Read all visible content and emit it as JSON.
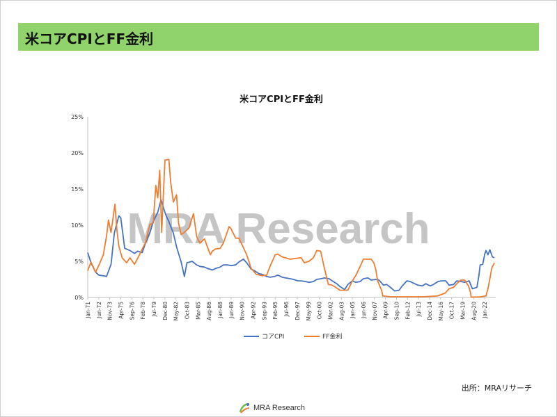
{
  "slide": {
    "header_title": "米コアCPIとFF金利",
    "source_note": "出所：MRAリサーチ",
    "watermark": "MRA Research",
    "footer_logo_text": "MRA Research"
  },
  "colors": {
    "header_bg": "#8fd36a",
    "core_cpi": "#4472c4",
    "ff_rate": "#ed7d31",
    "axis": "#bfbfbf",
    "watermark": "#7f7f7f"
  },
  "chart_data": {
    "type": "line",
    "title": "米コアCPIとFF金利",
    "xlabel": "",
    "ylabel": "",
    "ylim": [
      0,
      25
    ],
    "y_ticks": [
      "0%",
      "5%",
      "10%",
      "15%",
      "20%",
      "25%"
    ],
    "x_tick_labels": [
      "Jan-71",
      "Jun-72",
      "Nov-73",
      "Apr-75",
      "Sep-76",
      "Feb-78",
      "Jul-79",
      "Dec-80",
      "May-82",
      "Oct-83",
      "Mar-85",
      "Aug-86",
      "Jan-88",
      "Jun-89",
      "Nov-90",
      "Apr-92",
      "Sep-93",
      "Feb-95",
      "Jul-96",
      "Dec-97",
      "May-99",
      "Oct-00",
      "Mar-02",
      "Aug-03",
      "Jan-05",
      "Jun-06",
      "Nov-07",
      "Apr-09",
      "Sep-10",
      "Feb-12",
      "Jul-13",
      "Dec-14",
      "May-16",
      "Oct-17",
      "Mar-19",
      "Aug-20",
      "Jan-22"
    ],
    "legend_position": "bottom",
    "grid": false,
    "series": [
      {
        "name": "コアCPI",
        "color": "#4472c4",
        "x": [
          "1971-01",
          "1971-06",
          "1972-01",
          "1972-06",
          "1973-01",
          "1973-06",
          "1974-01",
          "1974-06",
          "1975-01",
          "1975-04",
          "1975-10",
          "1976-06",
          "1977-01",
          "1977-06",
          "1978-01",
          "1978-06",
          "1979-01",
          "1979-06",
          "1980-01",
          "1980-06",
          "1981-01",
          "1981-06",
          "1982-01",
          "1982-06",
          "1983-01",
          "1983-06",
          "1983-10",
          "1984-06",
          "1985-01",
          "1985-06",
          "1986-01",
          "1986-06",
          "1987-01",
          "1987-06",
          "1988-01",
          "1988-06",
          "1989-01",
          "1989-06",
          "1990-01",
          "1990-06",
          "1991-01",
          "1991-06",
          "1992-01",
          "1992-06",
          "1993-01",
          "1993-06",
          "1994-01",
          "1994-06",
          "1995-01",
          "1995-06",
          "1996-01",
          "1996-06",
          "1997-01",
          "1997-06",
          "1998-01",
          "1998-06",
          "1999-01",
          "1999-06",
          "2000-01",
          "2000-06",
          "2001-01",
          "2001-06",
          "2002-01",
          "2002-06",
          "2003-01",
          "2003-06",
          "2004-01",
          "2004-06",
          "2005-01",
          "2005-06",
          "2006-01",
          "2006-06",
          "2007-01",
          "2007-06",
          "2008-01",
          "2008-06",
          "2009-01",
          "2009-06",
          "2010-01",
          "2010-06",
          "2011-01",
          "2011-06",
          "2012-01",
          "2012-06",
          "2013-01",
          "2013-06",
          "2014-01",
          "2014-06",
          "2015-01",
          "2015-06",
          "2016-01",
          "2016-06",
          "2017-01",
          "2017-06",
          "2018-01",
          "2018-06",
          "2019-01",
          "2019-06",
          "2020-01",
          "2020-06",
          "2021-01",
          "2021-04",
          "2021-06",
          "2021-10",
          "2022-01",
          "2022-03",
          "2022-06",
          "2022-09",
          "2023-01",
          "2023-04"
        ],
        "values": [
          6.2,
          4.8,
          3.5,
          3.1,
          3.0,
          2.9,
          4.6,
          8.9,
          11.3,
          11.0,
          6.8,
          6.5,
          6.1,
          6.4,
          6.2,
          7.5,
          9.0,
          10.5,
          11.8,
          13.5,
          11.5,
          10.5,
          8.9,
          7.0,
          4.9,
          2.9,
          4.8,
          5.0,
          4.5,
          4.3,
          4.2,
          4.0,
          3.8,
          4.0,
          4.2,
          4.5,
          4.5,
          4.4,
          4.5,
          4.9,
          5.3,
          4.8,
          3.9,
          3.7,
          3.3,
          3.2,
          2.9,
          2.8,
          2.9,
          3.1,
          2.8,
          2.7,
          2.6,
          2.5,
          2.3,
          2.3,
          2.2,
          2.1,
          2.2,
          2.5,
          2.6,
          2.7,
          2.6,
          2.3,
          1.9,
          1.5,
          1.1,
          1.8,
          2.3,
          2.1,
          2.2,
          2.6,
          2.7,
          2.4,
          2.5,
          2.4,
          1.7,
          1.8,
          1.3,
          0.9,
          1.0,
          1.6,
          2.3,
          2.2,
          1.9,
          1.7,
          1.6,
          1.9,
          1.6,
          1.8,
          2.2,
          2.3,
          2.3,
          1.7,
          1.8,
          2.3,
          2.2,
          2.1,
          2.3,
          1.2,
          1.4,
          3.0,
          4.5,
          4.6,
          6.0,
          6.5,
          5.9,
          6.6,
          5.6,
          5.5
        ]
      },
      {
        "name": "FF金利",
        "color": "#ed7d31",
        "x": [
          "1971-01",
          "1971-06",
          "1972-01",
          "1972-06",
          "1973-01",
          "1973-06",
          "1973-09",
          "1974-01",
          "1974-07",
          "1974-10",
          "1975-01",
          "1975-06",
          "1976-01",
          "1976-06",
          "1977-01",
          "1977-06",
          "1978-01",
          "1978-06",
          "1979-01",
          "1979-06",
          "1979-10",
          "1980-01",
          "1980-04",
          "1980-07",
          "1980-12",
          "1981-06",
          "1981-09",
          "1982-01",
          "1982-06",
          "1982-09",
          "1983-01",
          "1983-06",
          "1984-01",
          "1984-08",
          "1985-01",
          "1985-06",
          "1986-01",
          "1986-10",
          "1987-01",
          "1987-06",
          "1988-01",
          "1988-06",
          "1989-03",
          "1989-06",
          "1990-01",
          "1990-06",
          "1991-01",
          "1991-06",
          "1992-01",
          "1992-09",
          "1993-06",
          "1994-01",
          "1994-06",
          "1995-02",
          "1995-06",
          "1996-01",
          "1997-01",
          "1998-06",
          "1998-11",
          "1999-06",
          "2000-01",
          "2000-06",
          "2000-12",
          "2001-06",
          "2001-12",
          "2002-06",
          "2003-06",
          "2004-06",
          "2005-01",
          "2005-06",
          "2006-01",
          "2006-06",
          "2007-06",
          "2007-10",
          "2008-01",
          "2008-04",
          "2008-10",
          "2008-12",
          "2010-01",
          "2012-01",
          "2014-01",
          "2015-12",
          "2016-12",
          "2017-06",
          "2018-01",
          "2018-06",
          "2018-12",
          "2019-06",
          "2019-09",
          "2019-12",
          "2020-03",
          "2020-04",
          "2021-06",
          "2022-03",
          "2022-06",
          "2022-09",
          "2022-12",
          "2023-04"
        ],
        "values": [
          3.7,
          4.9,
          3.5,
          4.4,
          5.9,
          8.5,
          10.7,
          9.0,
          12.9,
          9.3,
          7.1,
          5.5,
          4.8,
          5.5,
          4.6,
          5.4,
          6.7,
          7.6,
          10.1,
          10.3,
          15.5,
          13.8,
          17.6,
          9.0,
          19.0,
          19.1,
          15.9,
          13.2,
          14.2,
          10.3,
          8.7,
          9.0,
          9.6,
          11.6,
          8.4,
          7.5,
          8.1,
          5.9,
          6.4,
          6.7,
          6.8,
          7.5,
          9.8,
          9.5,
          8.2,
          8.2,
          6.9,
          5.9,
          4.0,
          3.2,
          3.0,
          3.1,
          4.3,
          5.9,
          6.0,
          5.6,
          5.3,
          5.5,
          4.8,
          5.0,
          5.5,
          6.5,
          6.4,
          4.0,
          1.8,
          1.7,
          1.0,
          1.0,
          2.3,
          3.0,
          4.3,
          5.3,
          5.3,
          4.8,
          3.9,
          2.3,
          1.0,
          0.2,
          0.1,
          0.1,
          0.1,
          0.2,
          0.6,
          1.2,
          1.4,
          1.9,
          2.4,
          2.4,
          2.0,
          1.6,
          0.7,
          0.05,
          0.08,
          0.2,
          1.2,
          2.6,
          4.1,
          4.8
        ]
      }
    ]
  }
}
